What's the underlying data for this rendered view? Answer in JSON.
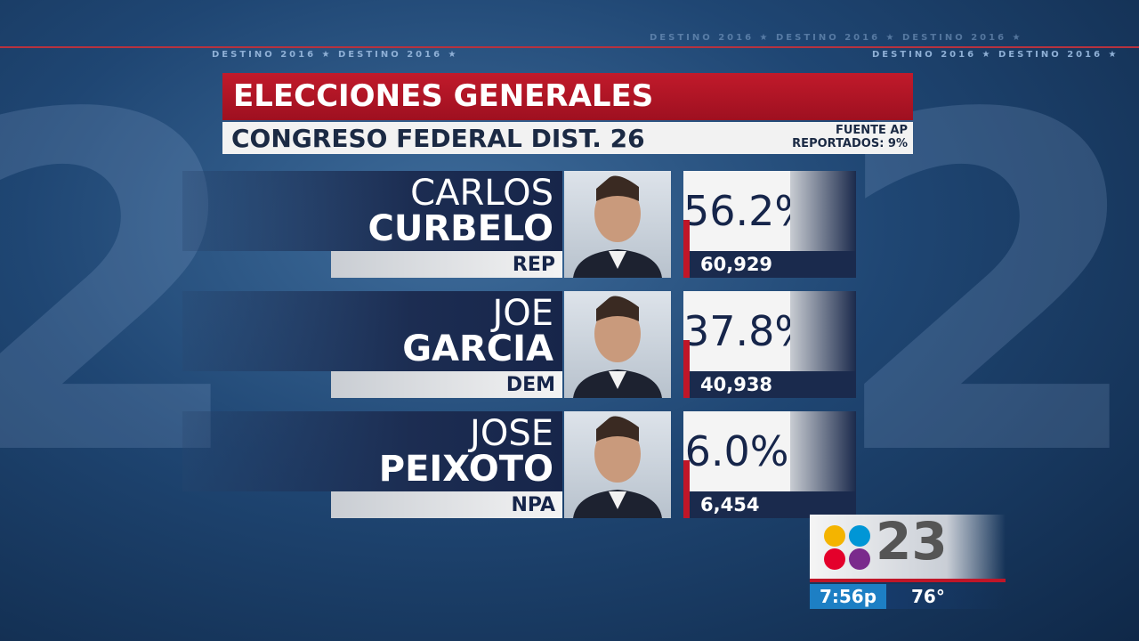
{
  "banner": "DESTINO 2016 ★",
  "header": {
    "title": "ELECCIONES GENERALES",
    "subtitle": "CONGRESO FEDERAL DIST. 26",
    "source": "FUENTE AP",
    "reported": "REPORTADOS: 9%"
  },
  "candidates": [
    {
      "first": "CARLOS",
      "last": "CURBELO",
      "party": "REP",
      "percent": "56.2%",
      "votes": "60,929"
    },
    {
      "first": "JOE",
      "last": "GARCIA",
      "party": "DEM",
      "percent": "37.8%",
      "votes": "40,938"
    },
    {
      "first": "JOSE",
      "last": "PEIXOTO",
      "party": "NPA",
      "percent": "6.0%",
      "votes": "6,454"
    }
  ],
  "station": {
    "channel": "23",
    "time": "7:56p",
    "temperature": "76°"
  }
}
